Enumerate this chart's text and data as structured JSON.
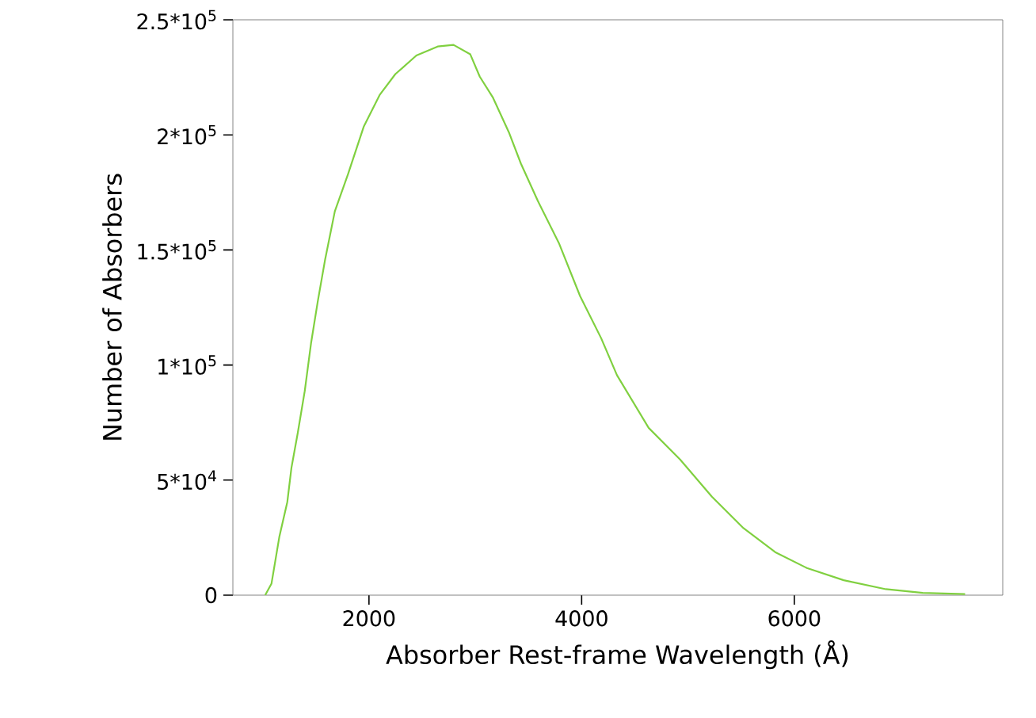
{
  "chart_data": {
    "type": "line",
    "xlabel": "Absorber Rest-frame Wavelength (Å)",
    "ylabel": "Number of Absorbers",
    "xlim": [
      720,
      7960
    ],
    "ylim": [
      0,
      250000
    ],
    "xticks": [
      2000,
      4000,
      6000
    ],
    "yticks": [
      {
        "value": 0,
        "label": "0"
      },
      {
        "value": 50000,
        "label": "5*10$^{4}$"
      },
      {
        "value": 100000,
        "label": "1*10$^{5}$"
      },
      {
        "value": 150000,
        "label": "1.5*10$^{5}$"
      },
      {
        "value": 200000,
        "label": "2*10$^{5}$"
      },
      {
        "value": 250000,
        "label": "2.5*10$^{5}$"
      }
    ],
    "series": [
      {
        "color": "#80d040",
        "x": [
          1024,
          1083,
          1158,
          1232,
          1271,
          1330,
          1396,
          1455,
          1519,
          1589,
          1679,
          1802,
          1950,
          2100,
          2248,
          2446,
          2646,
          2795,
          2953,
          3042,
          3167,
          3315,
          3429,
          3588,
          3786,
          3985,
          4183,
          4332,
          4630,
          4927,
          5225,
          5522,
          5820,
          6118,
          6464,
          6861,
          7208,
          7606
        ],
        "values": [
          0,
          4960,
          25600,
          40500,
          55400,
          70400,
          88700,
          109400,
          127800,
          146200,
          166800,
          182800,
          203500,
          217300,
          226400,
          234500,
          238400,
          239100,
          235000,
          225300,
          216100,
          201200,
          187500,
          171300,
          153000,
          130000,
          111700,
          95600,
          72700,
          58900,
          42800,
          29100,
          18700,
          11800,
          6500,
          2600,
          1000,
          500
        ]
      }
    ]
  }
}
